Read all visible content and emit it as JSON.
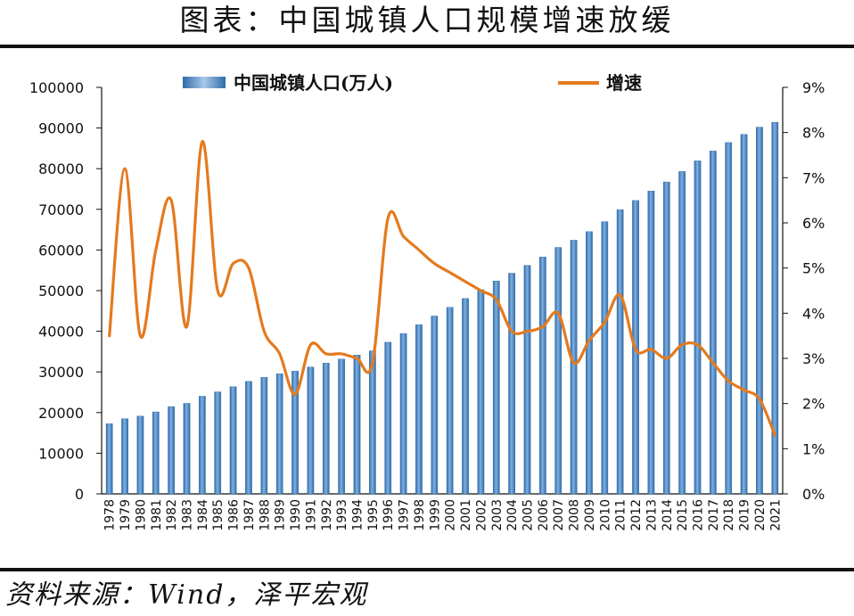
{
  "header": {
    "title": "图表：中国城镇人口规模增速放缓"
  },
  "footer": {
    "source": "资料来源：Wind，泽平宏观"
  },
  "colors": {
    "bar": "#4a86c8",
    "bar_dark": "#2f6aa8",
    "line": "#e47a1e",
    "axis": "#111111"
  },
  "chart_data": {
    "type": "bar",
    "title": "",
    "xlabel": "",
    "ylabel": "",
    "ylim": [
      0,
      100000
    ],
    "y2lim": [
      0,
      9
    ],
    "yticks": [
      "0",
      "10000",
      "20000",
      "30000",
      "40000",
      "50000",
      "60000",
      "70000",
      "80000",
      "90000",
      "100000"
    ],
    "y2ticks": [
      "0%",
      "1%",
      "2%",
      "3%",
      "4%",
      "5%",
      "6%",
      "7%",
      "8%",
      "9%"
    ],
    "legend_position": "top",
    "grid": false,
    "categories": [
      "1978",
      "1979",
      "1980",
      "1981",
      "1982",
      "1983",
      "1984",
      "1985",
      "1986",
      "1987",
      "1988",
      "1989",
      "1990",
      "1991",
      "1992",
      "1993",
      "1994",
      "1995",
      "1996",
      "1997",
      "1998",
      "1999",
      "2000",
      "2001",
      "2002",
      "2003",
      "2004",
      "2005",
      "2006",
      "2007",
      "2008",
      "2009",
      "2010",
      "2011",
      "2012",
      "2013",
      "2014",
      "2015",
      "2016",
      "2017",
      "2018",
      "2019",
      "2020",
      "2021"
    ],
    "series": [
      {
        "name": "中国城镇人口(万人)",
        "type": "bar",
        "axis": "left",
        "values": [
          17245,
          18495,
          19140,
          20171,
          21480,
          22274,
          24017,
          25094,
          26366,
          27674,
          28661,
          29540,
          30195,
          31203,
          32175,
          33173,
          34169,
          35174,
          37304,
          39449,
          41608,
          43748,
          45906,
          48064,
          50212,
          52376,
          54283,
          56212,
          58288,
          60633,
          62403,
          64512,
          66978,
          69927,
          72175,
          74502,
          76738,
          79302,
          81924,
          84343,
          86433,
          88426,
          90220,
          91425
        ]
      },
      {
        "name": "增速",
        "type": "line",
        "axis": "right",
        "values": [
          3.5,
          7.2,
          3.5,
          5.4,
          6.5,
          3.7,
          7.8,
          4.5,
          5.1,
          5.0,
          3.6,
          3.1,
          2.2,
          3.3,
          3.1,
          3.1,
          3.0,
          2.9,
          6.1,
          5.7,
          5.4,
          5.1,
          4.9,
          4.7,
          4.5,
          4.3,
          3.6,
          3.6,
          3.7,
          4.0,
          2.9,
          3.4,
          3.8,
          4.4,
          3.2,
          3.2,
          3.0,
          3.3,
          3.3,
          2.9,
          2.5,
          2.3,
          2.1,
          1.3
        ]
      }
    ]
  }
}
